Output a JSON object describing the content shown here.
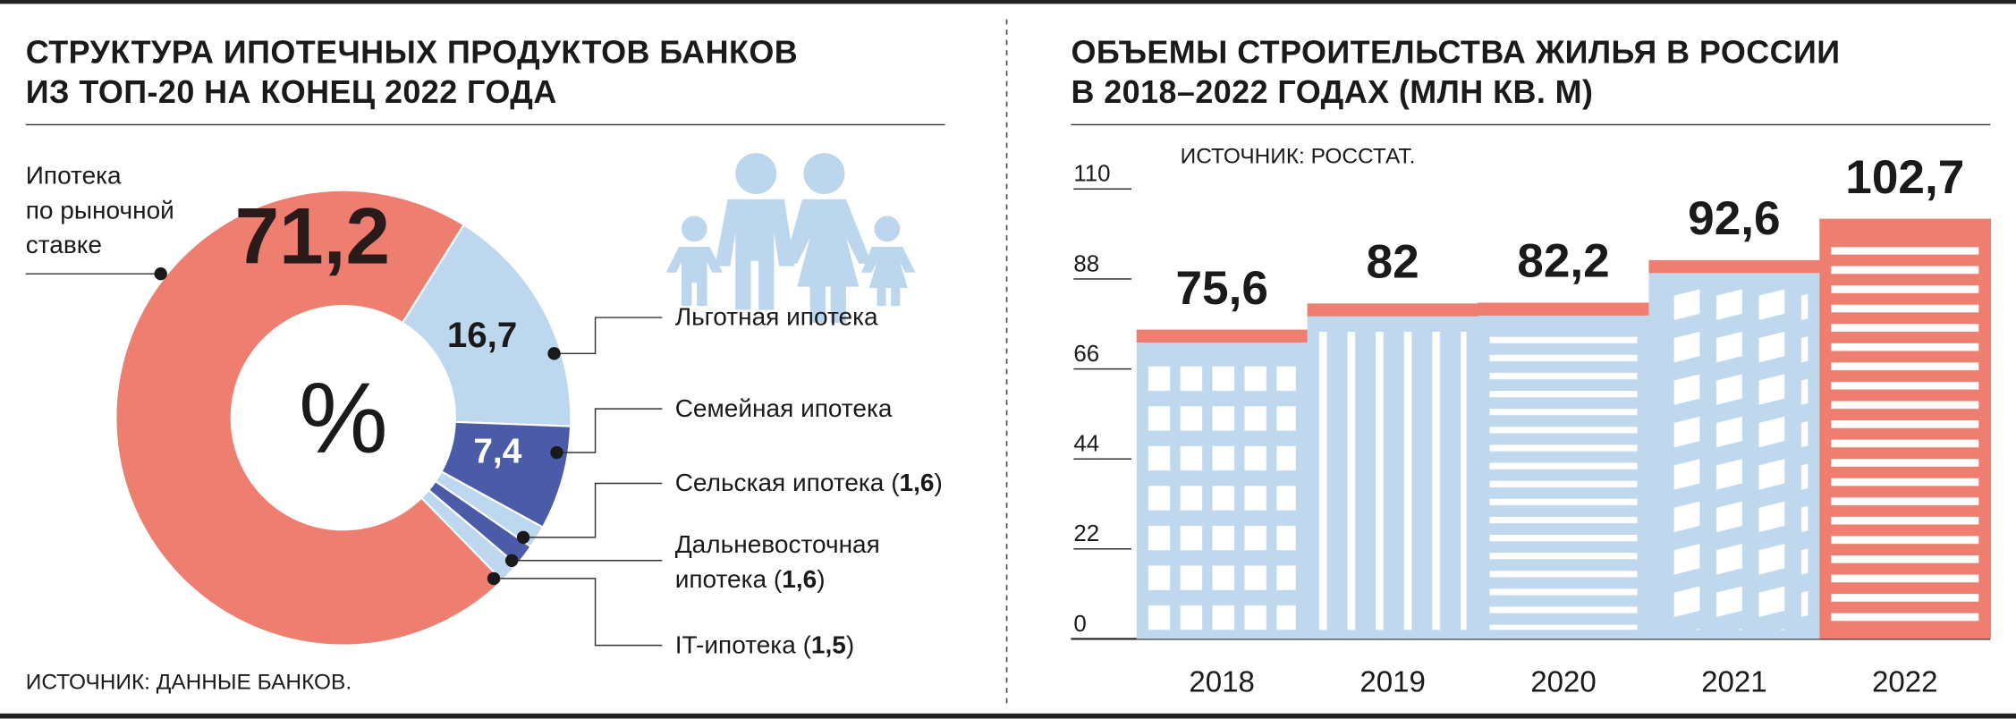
{
  "chart_data": [
    {
      "type": "donut",
      "title": "СТРУКТУРА ИПОТЕЧНЫХ ПРОДУКТОВ БАНКОВ\nИЗ ТОП-20 НА КОНЕЦ 2022 ГОДА",
      "center_label": "%",
      "source": "ИСТОЧНИК: ДАННЫЕ БАНКОВ.",
      "categories": [
        "Ипотека\nпо рыночной\nставке",
        "Льготная ипотека",
        "Семейная ипотека",
        "Сельская ипотека",
        "Дальневосточная\nипотека",
        "IT-ипотека"
      ],
      "values": [
        71.2,
        16.7,
        7.4,
        1.6,
        1.6,
        1.5
      ],
      "value_labels": [
        "71,2",
        "16,7",
        "7,4",
        "1,6",
        "1,6",
        "1,5"
      ],
      "value_label_brackets": [
        "(",
        ")"
      ],
      "colors": [
        "#ee7e70",
        "#bdd7ee",
        "#4b5ba8",
        "#bdd7ee",
        "#4b5ba8",
        "#bdd7ee"
      ]
    },
    {
      "type": "bar",
      "title": "ОБЪЕМЫ СТРОИТЕЛЬСТВА ЖИЛЬЯ В РОССИИ\nВ 2018–2022 ГОДАХ (МЛН КВ. М)",
      "source": "ИСТОЧНИК: РОССТАТ.",
      "categories": [
        "2018",
        "2019",
        "2020",
        "2021",
        "2022"
      ],
      "values": [
        75.6,
        82,
        82.2,
        92.6,
        102.7
      ],
      "value_labels": [
        "75,6",
        "82",
        "82,2",
        "92,6",
        "102,7"
      ],
      "colors": [
        "#c0d8ee",
        "#c0d8ee",
        "#c0d8ee",
        "#c0d8ee",
        "#ee7e70"
      ],
      "cap_color": "#ee7e70",
      "ylim": [
        0,
        110
      ],
      "yticks": [
        0,
        22,
        44,
        66,
        88,
        110
      ]
    }
  ]
}
